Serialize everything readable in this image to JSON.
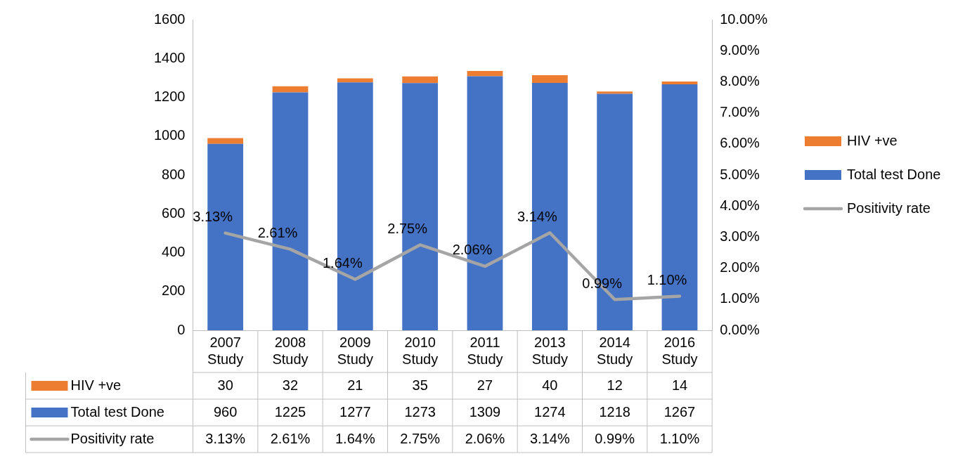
{
  "chart_data": {
    "type": "bar",
    "stacked": true,
    "legend": "right",
    "data_labels": true,
    "marker": "none",
    "categories": [
      "2007 Study",
      "2008 Study",
      "2009 Study",
      "2010 Study",
      "2011 Study",
      "2013 Study",
      "2014 Study",
      "2016 Study"
    ],
    "series": [
      {
        "name": "Total test Done",
        "color": "#4472c4",
        "values": [
          960,
          1225,
          1277,
          1273,
          1309,
          1274,
          1218,
          1267
        ]
      },
      {
        "name": "HIV +ve",
        "color": "#ed7d31",
        "values": [
          30,
          32,
          21,
          35,
          27,
          40,
          12,
          14
        ]
      },
      {
        "name": "Positivity rate",
        "type": "line",
        "axis": "y2",
        "color": "#a5a5a5",
        "values": [
          3.13,
          2.61,
          1.64,
          2.75,
          2.06,
          3.14,
          0.99,
          1.1
        ],
        "value_labels": [
          "3.13%",
          "2.61%",
          "1.64%",
          "2.75%",
          "2.06%",
          "3.14%",
          "0.99%",
          "1.10%"
        ]
      }
    ],
    "ylim": [
      0,
      1600
    ],
    "yticks": [
      0,
      200,
      400,
      600,
      800,
      1000,
      1200,
      1400,
      1600
    ],
    "y2lim": [
      0,
      10
    ],
    "y2ticks": [
      {
        "value": 0,
        "label": "0.00%"
      },
      {
        "value": 1,
        "label": "1.00%"
      },
      {
        "value": 2,
        "label": "2.00%"
      },
      {
        "value": 3,
        "label": "3.00%"
      },
      {
        "value": 4,
        "label": "4.00%"
      },
      {
        "value": 5,
        "label": "5.00%"
      },
      {
        "value": 6,
        "label": "6.00%"
      },
      {
        "value": 7,
        "label": "7.00%"
      },
      {
        "value": 8,
        "label": "8.00%"
      },
      {
        "value": 9,
        "label": "9.00%"
      },
      {
        "value": 10,
        "label": "10.00%"
      }
    ]
  }
}
